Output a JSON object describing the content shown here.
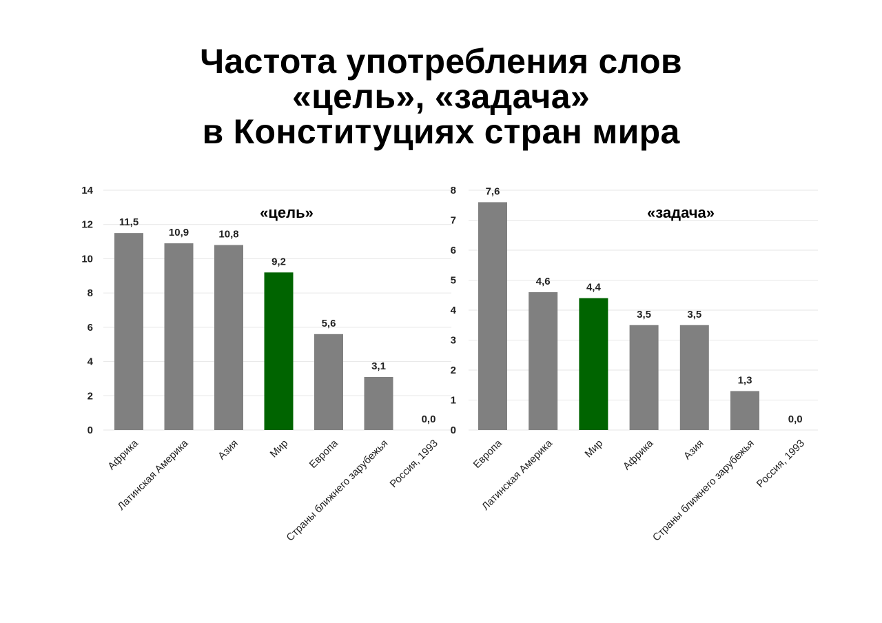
{
  "page": {
    "title_lines": [
      "Частота употребления слов",
      "«цель», «задача»",
      "в Конституциях стран мира"
    ]
  },
  "colors": {
    "default_bar": "#808080",
    "highlight_bar": "#006400",
    "zero_label": "#1f3d7a",
    "grid": "#e6e6e6"
  },
  "chart_data": [
    {
      "type": "bar",
      "title": "«цель»",
      "categories": [
        "Африка",
        "Латинская Америка",
        "Азия",
        "Мир",
        "Европа",
        "Страны ближнего зарубежья",
        "Россия, 1993"
      ],
      "values": [
        11.5,
        10.9,
        10.8,
        9.2,
        5.6,
        3.1,
        0.0
      ],
      "value_labels": [
        "11,5",
        "10,9",
        "10,8",
        "9,2",
        "5,6",
        "3,1",
        "0,0"
      ],
      "highlight": "Мир",
      "ylim": [
        0,
        14
      ],
      "yticks": [
        0,
        2,
        4,
        6,
        8,
        10,
        12,
        14
      ],
      "grid": true
    },
    {
      "type": "bar",
      "title": "«задача»",
      "categories": [
        "Европа",
        "Латинская Америка",
        "Мир",
        "Африка",
        "Азия",
        "Страны ближнего зарубежья",
        "Россия, 1993"
      ],
      "values": [
        7.6,
        4.6,
        4.4,
        3.5,
        3.5,
        1.3,
        0.0
      ],
      "value_labels": [
        "7,6",
        "4,6",
        "4,4",
        "3,5",
        "3,5",
        "1,3",
        "0,0"
      ],
      "highlight": "Мир",
      "ylim": [
        0,
        8
      ],
      "yticks": [
        0,
        1,
        2,
        3,
        4,
        5,
        6,
        7,
        8
      ],
      "grid": true
    }
  ]
}
